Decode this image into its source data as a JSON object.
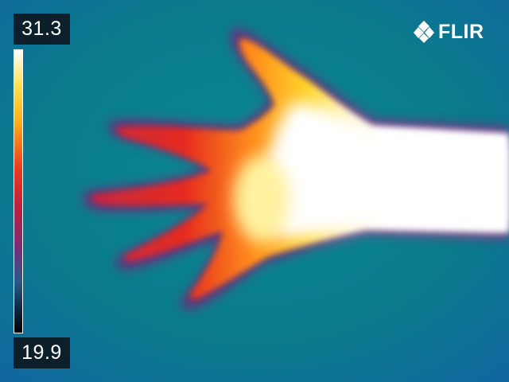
{
  "camera": {
    "brand": "FLIR",
    "logo_icon": "flir-diamond-logo-icon"
  },
  "temperature_scale": {
    "max": "31.3",
    "min": "19.9",
    "palette": "iron",
    "colors": {
      "hot": "#ffffff",
      "warm": "#ffd21a",
      "mid": "#e8202a",
      "cool": "#7a2a78",
      "cold": "#0b7e8a",
      "coldest": "#000000"
    }
  }
}
